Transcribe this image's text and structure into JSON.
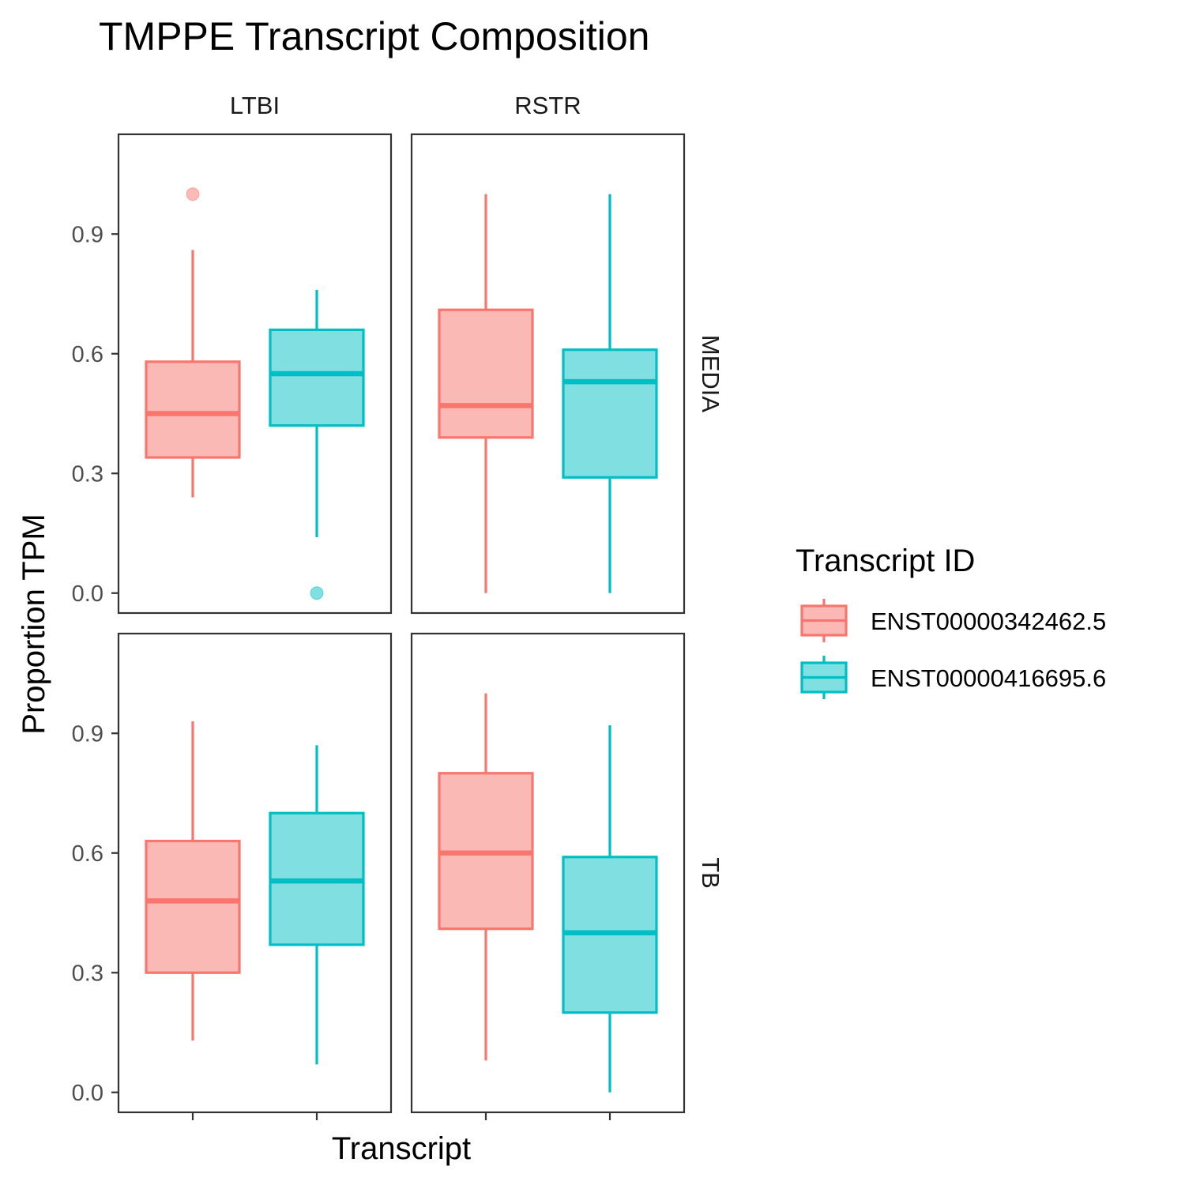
{
  "chart_data": {
    "type": "boxplot",
    "title": "TMPPE Transcript Composition",
    "xlabel": "Transcript",
    "ylabel": "Proportion TPM",
    "ylim": [
      -0.05,
      1.15
    ],
    "yticks": [
      0.0,
      0.3,
      0.6,
      0.9
    ],
    "ytick_labels": [
      "0.0",
      "0.3",
      "0.6",
      "0.9"
    ],
    "grid": false,
    "facet_columns": [
      "LTBI",
      "RSTR"
    ],
    "facet_rows": [
      "MEDIA",
      "TB"
    ],
    "legend": {
      "title": "Transcript ID",
      "position": "right",
      "entries": [
        "ENST00000342462.5",
        "ENST00000416695.6"
      ]
    },
    "series": [
      {
        "name": "ENST00000342462.5",
        "color": "#F8766D",
        "fill": "#FBB9B5"
      },
      {
        "name": "ENST00000416695.6",
        "color": "#00BFC4",
        "fill": "#80DFE1"
      }
    ],
    "panels": [
      {
        "col": "LTBI",
        "row": "MEDIA",
        "boxes": [
          {
            "series": 0,
            "lower_whisker": 0.24,
            "q1": 0.34,
            "median": 0.45,
            "q3": 0.58,
            "upper_whisker": 0.86,
            "outliers": [
              1.0
            ]
          },
          {
            "series": 1,
            "lower_whisker": 0.14,
            "q1": 0.42,
            "median": 0.55,
            "q3": 0.66,
            "upper_whisker": 0.76,
            "outliers": [
              0.0
            ]
          }
        ]
      },
      {
        "col": "RSTR",
        "row": "MEDIA",
        "boxes": [
          {
            "series": 0,
            "lower_whisker": 0.0,
            "q1": 0.39,
            "median": 0.47,
            "q3": 0.71,
            "upper_whisker": 1.0,
            "outliers": []
          },
          {
            "series": 1,
            "lower_whisker": 0.0,
            "q1": 0.29,
            "median": 0.53,
            "q3": 0.61,
            "upper_whisker": 1.0,
            "outliers": []
          }
        ]
      },
      {
        "col": "LTBI",
        "row": "TB",
        "boxes": [
          {
            "series": 0,
            "lower_whisker": 0.13,
            "q1": 0.3,
            "median": 0.48,
            "q3": 0.63,
            "upper_whisker": 0.93,
            "outliers": []
          },
          {
            "series": 1,
            "lower_whisker": 0.07,
            "q1": 0.37,
            "median": 0.53,
            "q3": 0.7,
            "upper_whisker": 0.87,
            "outliers": []
          }
        ]
      },
      {
        "col": "RSTR",
        "row": "TB",
        "boxes": [
          {
            "series": 0,
            "lower_whisker": 0.08,
            "q1": 0.41,
            "median": 0.6,
            "q3": 0.8,
            "upper_whisker": 1.0,
            "outliers": []
          },
          {
            "series": 1,
            "lower_whisker": 0.0,
            "q1": 0.2,
            "median": 0.4,
            "q3": 0.59,
            "upper_whisker": 0.92,
            "outliers": []
          }
        ]
      }
    ]
  }
}
